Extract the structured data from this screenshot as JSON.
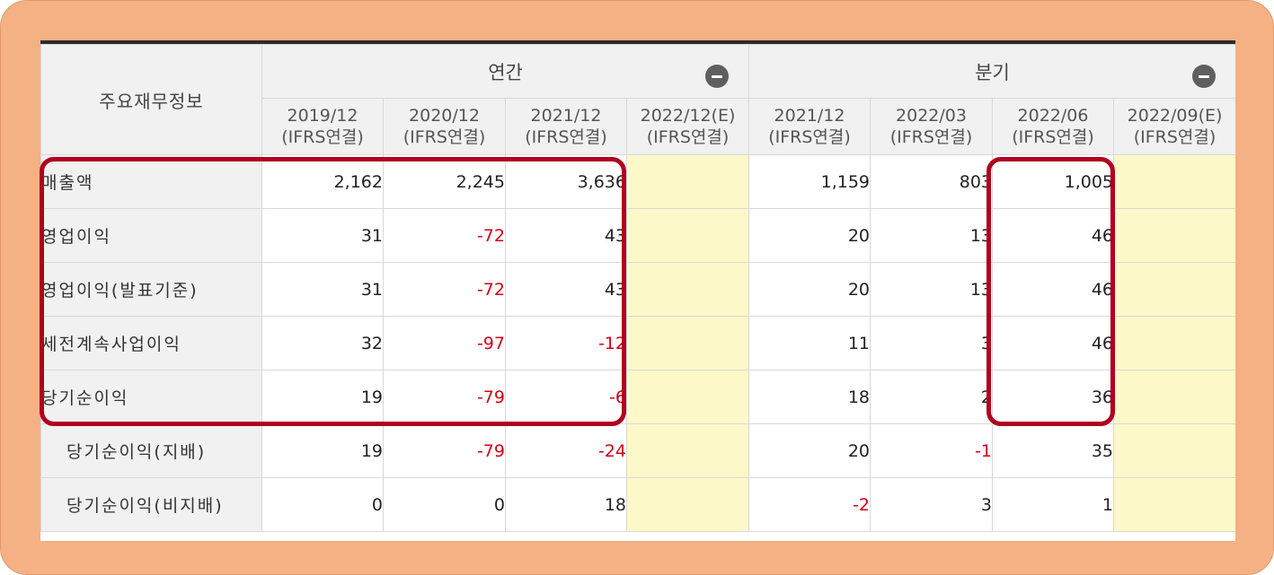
{
  "table": {
    "corner_label": "주요재무정보",
    "group_annual": "연간",
    "group_quarter": "분기",
    "columns": [
      {
        "period": "2019/12",
        "basis": "(IFRS연결)"
      },
      {
        "period": "2020/12",
        "basis": "(IFRS연결)"
      },
      {
        "period": "2021/12",
        "basis": "(IFRS연결)"
      },
      {
        "period": "2022/12(E)",
        "basis": "(IFRS연결)"
      },
      {
        "period": "2021/12",
        "basis": "(IFRS연결)"
      },
      {
        "period": "2022/03",
        "basis": "(IFRS연결)"
      },
      {
        "period": "2022/06",
        "basis": "(IFRS연결)"
      },
      {
        "period": "2022/09(E)",
        "basis": "(IFRS연결)"
      }
    ],
    "rows": [
      {
        "label": "매출액",
        "values": [
          "2,162",
          "2,245",
          "3,636",
          "",
          "1,159",
          "803",
          "1,005",
          ""
        ]
      },
      {
        "label": "영업이익",
        "values": [
          "31",
          "-72",
          "43",
          "",
          "20",
          "13",
          "46",
          ""
        ]
      },
      {
        "label": "영업이익(발표기준)",
        "values": [
          "31",
          "-72",
          "43",
          "",
          "20",
          "13",
          "46",
          ""
        ]
      },
      {
        "label": "세전계속사업이익",
        "values": [
          "32",
          "-97",
          "-12",
          "",
          "11",
          "3",
          "46",
          ""
        ]
      },
      {
        "label": "당기순이익",
        "values": [
          "19",
          "-79",
          "-6",
          "",
          "18",
          "2",
          "36",
          ""
        ]
      },
      {
        "label": "당기순이익(지배)",
        "values": [
          "19",
          "-79",
          "-24",
          "",
          "20",
          "-1",
          "35",
          ""
        ]
      },
      {
        "label": "당기순이익(비지배)",
        "values": [
          "0",
          "0",
          "18",
          "",
          "-2",
          "3",
          "1",
          ""
        ]
      }
    ]
  },
  "colors": {
    "frame": "#f4b183",
    "highlight_border": "#b0001e",
    "negative_text": "#d0021b",
    "estimate_fill": "#fdf8c8",
    "header_fill": "#f1f1f1"
  },
  "icons": {
    "collapse_annual": "minus-circle-icon",
    "collapse_quarter": "minus-circle-icon"
  }
}
